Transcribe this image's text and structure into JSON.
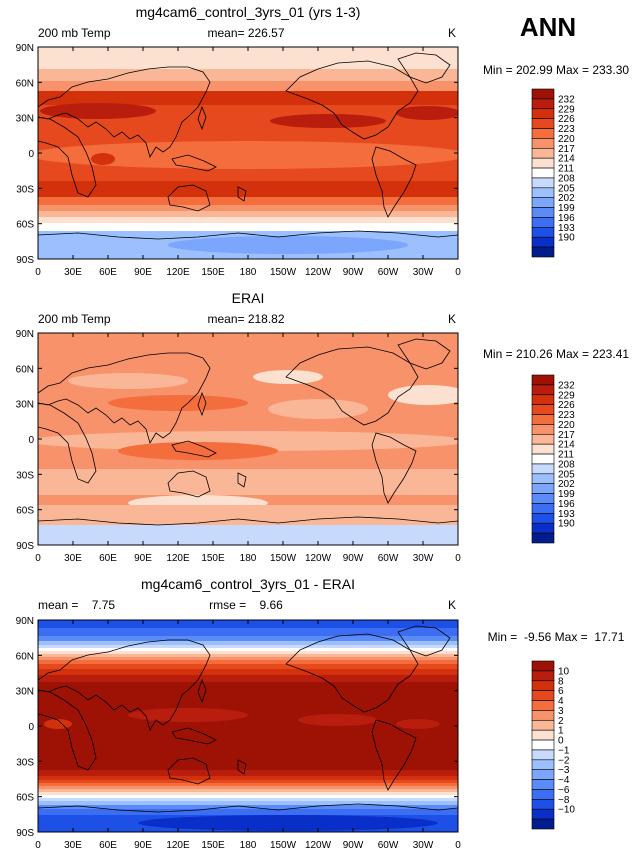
{
  "season": "ANN",
  "chart_data": [
    {
      "type": "heatmap",
      "title": "mg4cam6_control_3yrs_01 (yrs 1-3)",
      "left_label": "200 mb Temp",
      "center_label": "mean= 226.57",
      "right_label": "K",
      "minmax_label": "Min = 202.99 Max = 233.30",
      "min": 202.99,
      "max": 233.3,
      "mean": 226.57,
      "xticks": [
        "0",
        "30E",
        "60E",
        "90E",
        "120E",
        "150E",
        "180",
        "150W",
        "120W",
        "90W",
        "60W",
        "30W",
        "0"
      ],
      "yticks": [
        "90N",
        "60N",
        "30N",
        "0",
        "30S",
        "60S",
        "90S"
      ],
      "levels": [
        "232",
        "229",
        "226",
        "223",
        "220",
        "217",
        "214",
        "211",
        "208",
        "205",
        "202",
        "199",
        "196",
        "193",
        "190"
      ],
      "colors": [
        "#9e1206",
        "#b81d0d",
        "#d3300c",
        "#e6491d",
        "#f46d3d",
        "#f8926a",
        "#fab797",
        "#fde1d0",
        "#ffffff",
        "#c7dafe",
        "#9bc0fd",
        "#7ba6fb",
        "#5b8bf7",
        "#3b6ef2",
        "#1d50e6",
        "#0a2fc9",
        "#001c8d"
      ]
    },
    {
      "type": "heatmap",
      "title": "ERAI",
      "left_label": "200 mb Temp",
      "center_label": "mean= 218.82",
      "right_label": "K",
      "minmax_label": "Min = 210.26 Max = 223.41",
      "min": 210.26,
      "max": 223.41,
      "mean": 218.82,
      "xticks": [
        "0",
        "30E",
        "60E",
        "90E",
        "120E",
        "150E",
        "180",
        "150W",
        "120W",
        "90W",
        "60W",
        "30W",
        "0"
      ],
      "yticks": [
        "90N",
        "60N",
        "30N",
        "0",
        "30S",
        "60S",
        "90S"
      ],
      "levels": [
        "232",
        "229",
        "226",
        "223",
        "220",
        "217",
        "214",
        "211",
        "208",
        "205",
        "202",
        "199",
        "196",
        "193",
        "190"
      ],
      "colors": [
        "#9e1206",
        "#b81d0d",
        "#d3300c",
        "#e6491d",
        "#f46d3d",
        "#f8926a",
        "#fab797",
        "#fde1d0",
        "#ffffff",
        "#c7dafe",
        "#9bc0fd",
        "#7ba6fb",
        "#5b8bf7",
        "#3b6ef2",
        "#1d50e6",
        "#0a2fc9",
        "#001c8d"
      ]
    },
    {
      "type": "heatmap",
      "title": "mg4cam6_control_3yrs_01 - ERAI",
      "left_label": "mean =    7.75",
      "center_label": "rmse =    9.66",
      "right_label": "K",
      "minmax_label": "Min =  -9.56 Max =  17.71",
      "min": -9.56,
      "max": 17.71,
      "mean": 7.75,
      "rmse": 9.66,
      "xticks": [
        "0",
        "30E",
        "60E",
        "90E",
        "120E",
        "150E",
        "180",
        "150W",
        "120W",
        "90W",
        "60W",
        "30W",
        "0"
      ],
      "yticks": [
        "90N",
        "60N",
        "30N",
        "0",
        "30S",
        "60S",
        "90S"
      ],
      "levels": [
        "10",
        "8",
        "6",
        "4",
        "3",
        "2",
        "1",
        "0",
        "−1",
        "−2",
        "−3",
        "−4",
        "−6",
        "−8",
        "−10"
      ],
      "colors": [
        "#9e1206",
        "#b81d0d",
        "#d3300c",
        "#e6491d",
        "#f46d3d",
        "#f8926a",
        "#fab797",
        "#fde1d0",
        "#ffffff",
        "#c7dafe",
        "#9bc0fd",
        "#7ba6fb",
        "#5b8bf7",
        "#3b6ef2",
        "#1d50e6",
        "#0a2fc9",
        "#001c8d"
      ]
    }
  ]
}
